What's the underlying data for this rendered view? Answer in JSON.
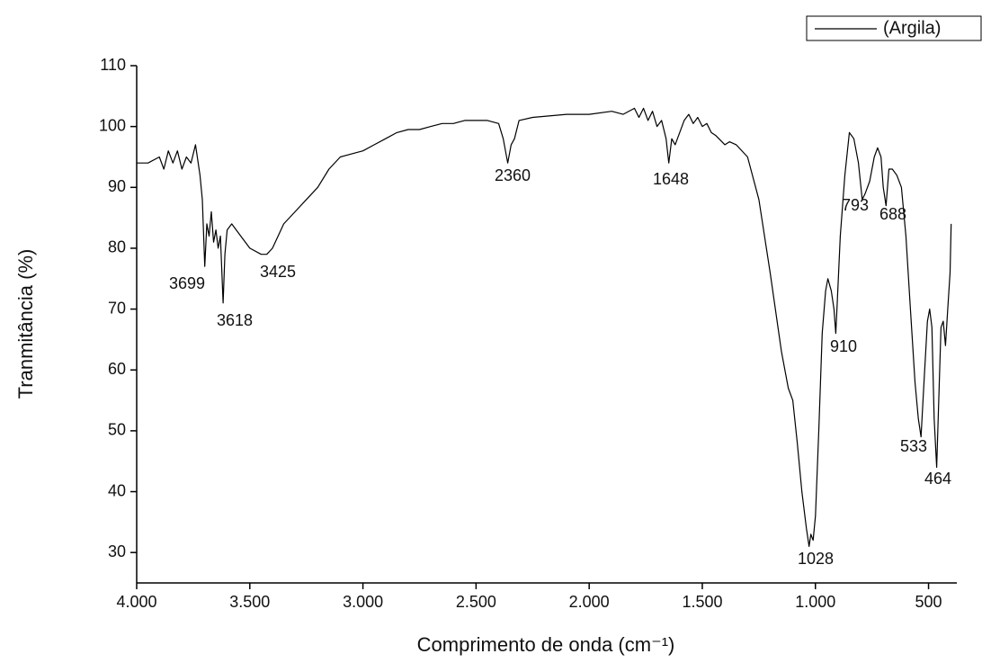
{
  "chart_data": {
    "type": "line",
    "xlabel": "Comprimento de onda (cm⁻¹)",
    "ylabel": "Tranmitância (%)",
    "xlim": [
      4000,
      375
    ],
    "ylim": [
      25,
      110
    ],
    "xticks": [
      {
        "value": 4000,
        "label": "4.000"
      },
      {
        "value": 3500,
        "label": "3.500"
      },
      {
        "value": 3000,
        "label": "3.000"
      },
      {
        "value": 2500,
        "label": "2.500"
      },
      {
        "value": 2000,
        "label": "2.000"
      },
      {
        "value": 1500,
        "label": "1.500"
      },
      {
        "value": 1000,
        "label": "1.000"
      },
      500
    ],
    "yticks": [
      30,
      40,
      50,
      60,
      70,
      80,
      90,
      100,
      110
    ],
    "legend": "top-right",
    "annotations": [
      "3699",
      "3618",
      "3425",
      "2360",
      "1648",
      "1028",
      "910",
      "793",
      "688",
      "533",
      "464"
    ],
    "x": [
      4000,
      3950,
      3900,
      3880,
      3860,
      3840,
      3820,
      3800,
      3780,
      3760,
      3740,
      3720,
      3710,
      3699,
      3690,
      3680,
      3670,
      3660,
      3650,
      3640,
      3630,
      3618,
      3610,
      3600,
      3580,
      3560,
      3540,
      3500,
      3450,
      3425,
      3400,
      3350,
      3300,
      3250,
      3200,
      3150,
      3100,
      3050,
      3000,
      2950,
      2900,
      2850,
      2800,
      2750,
      2700,
      2650,
      2600,
      2550,
      2450,
      2400,
      2380,
      2360,
      2345,
      2330,
      2310,
      2250,
      2100,
      2000,
      1900,
      1850,
      1800,
      1780,
      1760,
      1740,
      1720,
      1700,
      1680,
      1660,
      1648,
      1635,
      1620,
      1600,
      1580,
      1560,
      1540,
      1520,
      1500,
      1480,
      1460,
      1440,
      1400,
      1380,
      1350,
      1300,
      1250,
      1200,
      1150,
      1120,
      1100,
      1080,
      1060,
      1040,
      1028,
      1020,
      1010,
      1000,
      985,
      970,
      955,
      945,
      930,
      918,
      910,
      905,
      890,
      870,
      850,
      830,
      810,
      793,
      780,
      760,
      740,
      725,
      710,
      700,
      688,
      675,
      660,
      640,
      620,
      600,
      580,
      560,
      545,
      533,
      520,
      505,
      495,
      485,
      475,
      464,
      455,
      445,
      435,
      425,
      415,
      405,
      400
    ],
    "series": [
      {
        "name": "(Argila)",
        "color": "#000000",
        "values": [
          94,
          94,
          95,
          93,
          96,
          94,
          96,
          93,
          95,
          94,
          97,
          92,
          88,
          77,
          84,
          82,
          86,
          81,
          83,
          80,
          82,
          71,
          79,
          83,
          84,
          83,
          82,
          80,
          79,
          79,
          80,
          84,
          86,
          88,
          90,
          93,
          95,
          95.5,
          96,
          97,
          98,
          99,
          99.5,
          99.5,
          100,
          100.5,
          100.5,
          101,
          101,
          100.5,
          98,
          94,
          97,
          98,
          101,
          101.5,
          102,
          102,
          102.5,
          102,
          103,
          101.5,
          103,
          101,
          102.5,
          100,
          101,
          98,
          94,
          98,
          97,
          99,
          101,
          102,
          100.5,
          101.5,
          100,
          100.5,
          99,
          98.5,
          97,
          97.5,
          97,
          95,
          88,
          76,
          63,
          57,
          55,
          48,
          40,
          34,
          31,
          33,
          32,
          36,
          50,
          66,
          73,
          75,
          73,
          70,
          66,
          70,
          82,
          92,
          99,
          98,
          94,
          88,
          89,
          91,
          95,
          96.5,
          95,
          90,
          87,
          93,
          93,
          92,
          90,
          82,
          70,
          58,
          52,
          49,
          58,
          68,
          70,
          67,
          52,
          44,
          55,
          67,
          68,
          64,
          70,
          76,
          84
        ]
      }
    ]
  }
}
